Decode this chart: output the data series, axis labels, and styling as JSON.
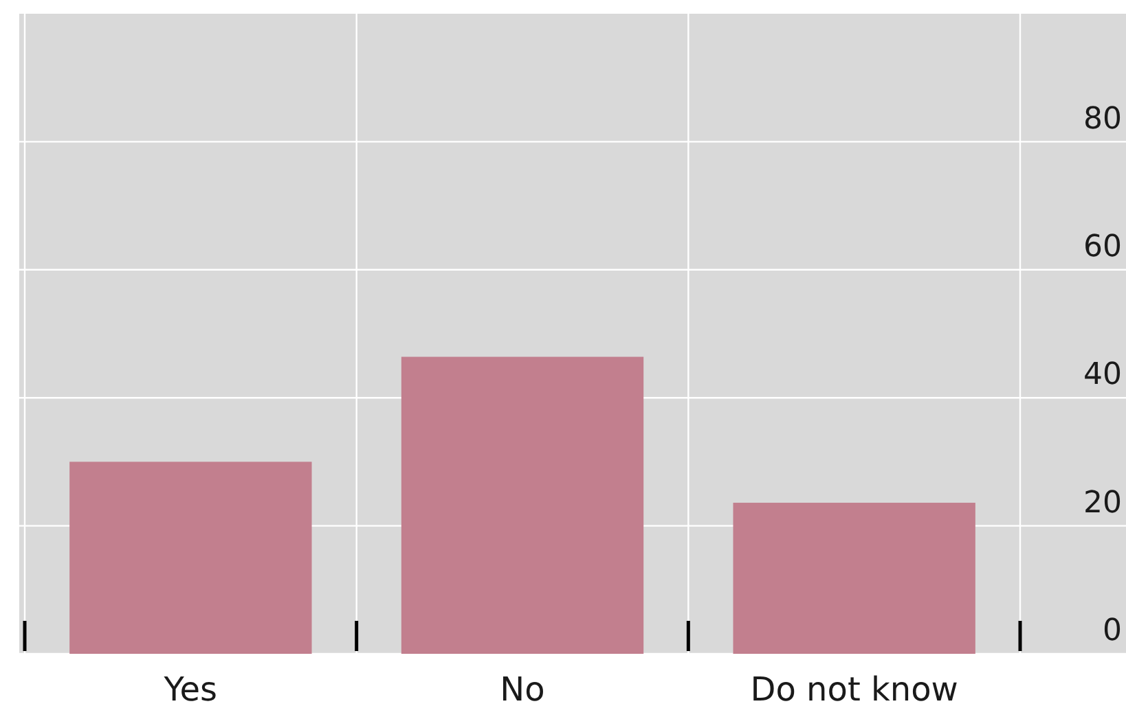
{
  "chart_data": {
    "type": "bar",
    "categories": [
      "Yes",
      "No",
      "Do not know"
    ],
    "values": [
      30,
      46.4,
      23.6
    ],
    "color": "#c27f8e",
    "ylim": [
      0,
      100
    ],
    "yticks": [
      0,
      20,
      40,
      60,
      80
    ],
    "grid": true
  }
}
